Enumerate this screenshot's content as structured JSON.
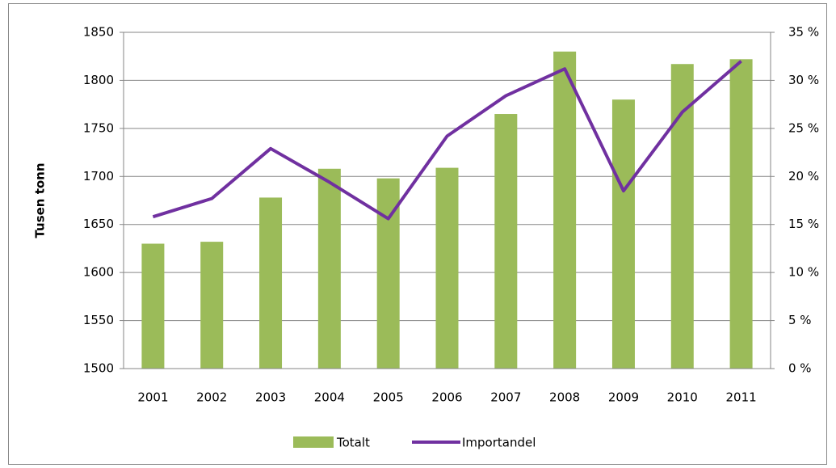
{
  "chart_data": {
    "type": "bar-line",
    "y_label": "Tusen tonn",
    "categories": [
      "2001",
      "2002",
      "2003",
      "2004",
      "2005",
      "2006",
      "2007",
      "2008",
      "2009",
      "2010",
      "2011"
    ],
    "series": [
      {
        "name": "Totalt",
        "type": "bar",
        "color": "#9bbb59",
        "values": [
          1630,
          1632,
          1678,
          1708,
          1698,
          1709,
          1765,
          1830,
          1780,
          1817,
          1822
        ]
      },
      {
        "name": "Importandel",
        "type": "line",
        "axis": "y2",
        "color": "#7030a0",
        "values": [
          15.8,
          17.7,
          22.9,
          19.4,
          15.6,
          24.2,
          28.4,
          31.2,
          18.5,
          26.7,
          32.0
        ]
      }
    ],
    "ylim": [
      1500,
      1850
    ],
    "yticks": [
      1500,
      1550,
      1600,
      1650,
      1700,
      1750,
      1800,
      1850
    ],
    "y2lim": [
      0,
      35
    ],
    "y2ticks": [
      {
        "value": 0,
        "label": "0 %"
      },
      {
        "value": 5,
        "label": "5 %"
      },
      {
        "value": 10,
        "label": "10 %"
      },
      {
        "value": 15,
        "label": "15 %"
      },
      {
        "value": 20,
        "label": "20 %"
      },
      {
        "value": 25,
        "label": "25 %"
      },
      {
        "value": 30,
        "label": "30 %"
      },
      {
        "value": 35,
        "label": "35 %"
      }
    ],
    "grid": true,
    "legend": "bottom"
  }
}
